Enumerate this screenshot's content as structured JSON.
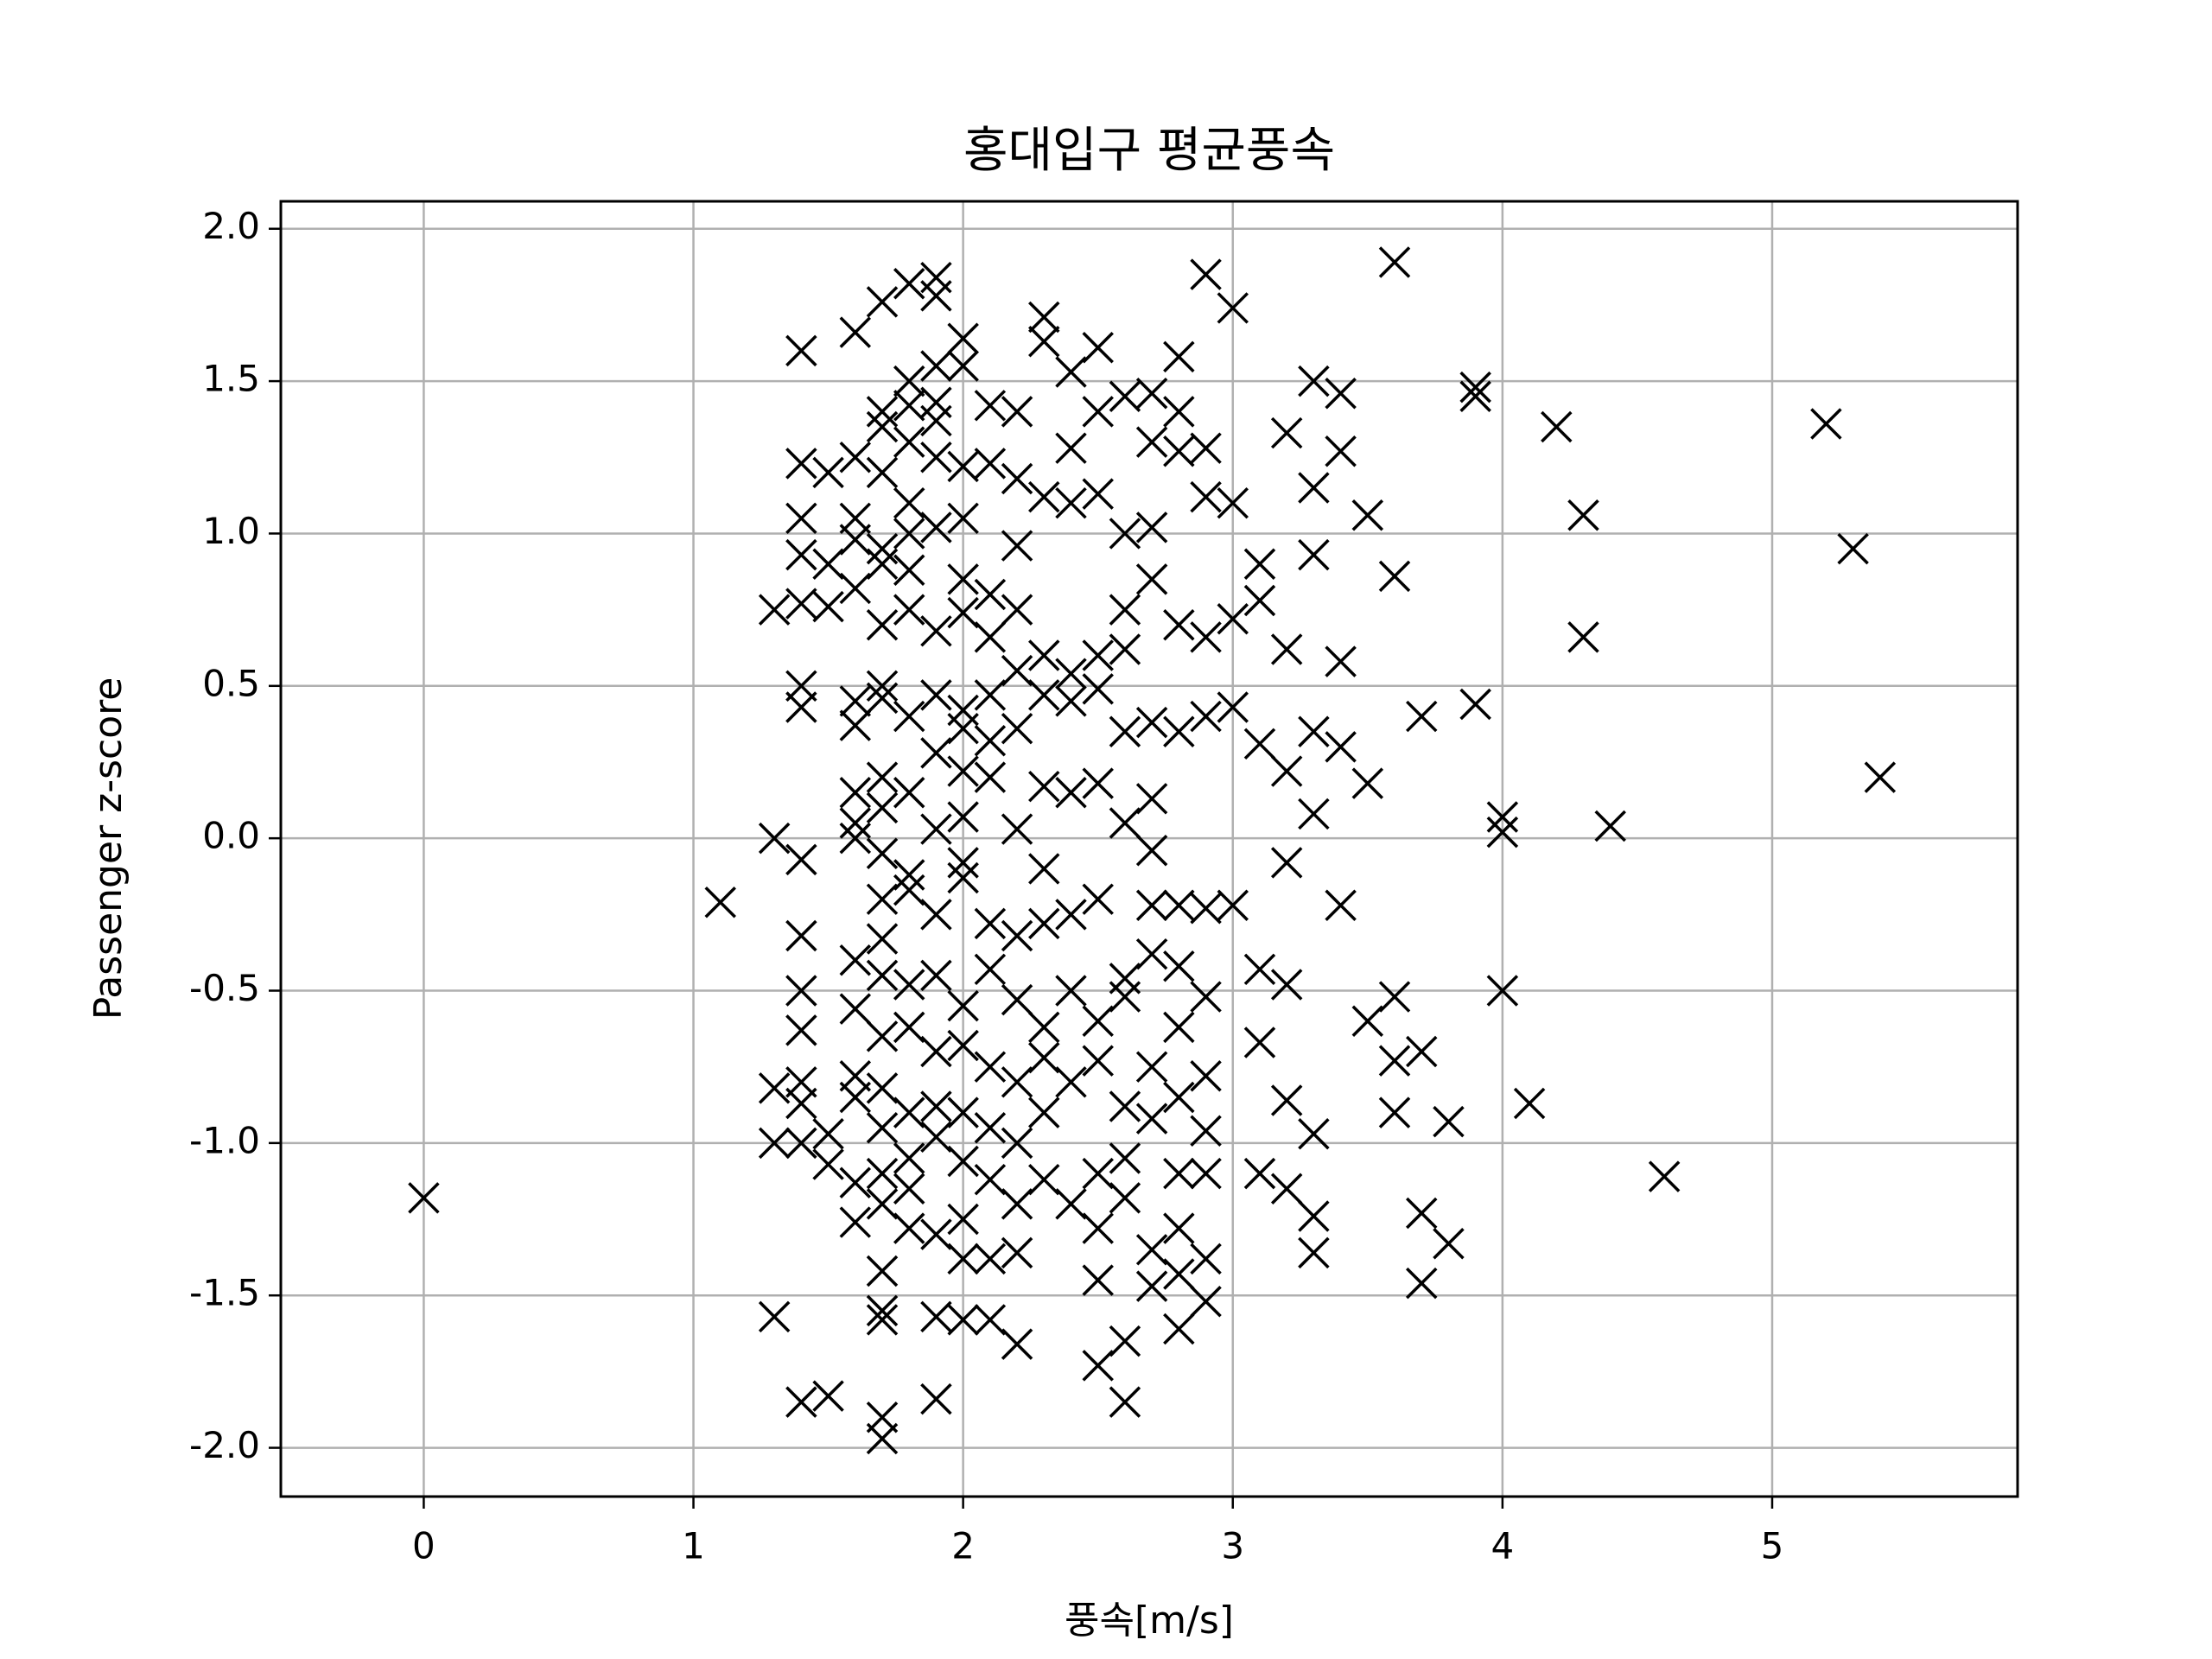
{
  "chart_data": {
    "type": "scatter",
    "title": "홍대입구 평균풍속",
    "xlabel": "풍속[m/s]",
    "ylabel": "Passenger z-score",
    "marker": "x",
    "color": "#000000",
    "grid": true,
    "xlim": [
      -0.53,
      5.91
    ],
    "ylim": [
      -2.16,
      2.09
    ],
    "xticks": [
      0,
      1,
      2,
      3,
      4,
      5
    ],
    "yticks": [
      {
        "value": -2.0,
        "label": "-2.0"
      },
      {
        "value": -1.5,
        "label": "-1.5"
      },
      {
        "value": -1.0,
        "label": "-1.0"
      },
      {
        "value": -0.5,
        "label": "-0.5"
      },
      {
        "value": 0.0,
        "label": "0.0"
      },
      {
        "value": 0.5,
        "label": "0.5"
      },
      {
        "value": 1.0,
        "label": "1.0"
      },
      {
        "value": 1.5,
        "label": "1.5"
      },
      {
        "value": 2.0,
        "label": "2.0"
      }
    ],
    "x": [
      0,
      1.1,
      1.3,
      1.3,
      1.3,
      1.3,
      1.3,
      1.4,
      1.4,
      1.4,
      1.4,
      1.4,
      1.4,
      1.4,
      1.4,
      1.4,
      1.4,
      1.4,
      1.4,
      1.4,
      1.4,
      1.4,
      1.5,
      1.5,
      1.5,
      1.5,
      1.5,
      1.5,
      1.6,
      1.6,
      1.6,
      1.6,
      1.6,
      1.6,
      1.6,
      1.6,
      1.6,
      1.6,
      1.6,
      1.6,
      1.6,
      1.6,
      1.6,
      1.6,
      1.7,
      1.7,
      1.7,
      1.7,
      1.7,
      1.7,
      1.7,
      1.7,
      1.7,
      1.7,
      1.7,
      1.7,
      1.7,
      1.7,
      1.7,
      1.7,
      1.7,
      1.7,
      1.7,
      1.7,
      1.7,
      1.7,
      1.7,
      1.7,
      1.7,
      1.8,
      1.8,
      1.8,
      1.8,
      1.8,
      1.8,
      1.8,
      1.8,
      1.8,
      1.8,
      1.8,
      1.8,
      1.8,
      1.8,
      1.8,
      1.8,
      1.8,
      1.8,
      1.9,
      1.9,
      1.9,
      1.9,
      1.9,
      1.9,
      1.9,
      1.9,
      1.9,
      1.9,
      1.9,
      1.9,
      1.9,
      1.9,
      1.9,
      1.9,
      1.9,
      1.9,
      1.9,
      2.0,
      2.0,
      2.0,
      2.0,
      2.0,
      2.0,
      2.0,
      2.0,
      2.0,
      2.0,
      2.0,
      2.0,
      2.0,
      2.0,
      2.0,
      2.0,
      2.0,
      2.0,
      2.0,
      2.1,
      2.1,
      2.1,
      2.1,
      2.1,
      2.1,
      2.1,
      2.1,
      2.1,
      2.1,
      2.1,
      2.1,
      2.1,
      2.1,
      2.2,
      2.2,
      2.2,
      2.2,
      2.2,
      2.2,
      2.2,
      2.2,
      2.2,
      2.2,
      2.2,
      2.2,
      2.2,
      2.2,
      2.3,
      2.3,
      2.3,
      2.3,
      2.3,
      2.3,
      2.3,
      2.3,
      2.3,
      2.3,
      2.3,
      2.3,
      2.4,
      2.4,
      2.4,
      2.4,
      2.4,
      2.4,
      2.4,
      2.4,
      2.4,
      2.4,
      2.5,
      2.5,
      2.5,
      2.5,
      2.5,
      2.5,
      2.5,
      2.5,
      2.5,
      2.5,
      2.5,
      2.5,
      2.5,
      2.6,
      2.6,
      2.6,
      2.6,
      2.6,
      2.6,
      2.6,
      2.6,
      2.6,
      2.6,
      2.6,
      2.6,
      2.6,
      2.7,
      2.7,
      2.7,
      2.7,
      2.7,
      2.7,
      2.7,
      2.7,
      2.7,
      2.7,
      2.7,
      2.7,
      2.7,
      2.8,
      2.8,
      2.8,
      2.8,
      2.8,
      2.8,
      2.8,
      2.8,
      2.8,
      2.8,
      2.8,
      2.8,
      2.8,
      2.9,
      2.9,
      2.9,
      2.9,
      2.9,
      2.9,
      2.9,
      2.9,
      2.9,
      2.9,
      2.9,
      2.9,
      3.0,
      3.0,
      3.0,
      3.0,
      3.0,
      3.1,
      3.1,
      3.1,
      3.1,
      3.1,
      3.1,
      3.2,
      3.2,
      3.2,
      3.2,
      3.2,
      3.2,
      3.2,
      3.3,
      3.3,
      3.3,
      3.3,
      3.3,
      3.3,
      3.3,
      3.3,
      3.4,
      3.4,
      3.4,
      3.4,
      3.4,
      3.5,
      3.5,
      3.5,
      3.6,
      3.6,
      3.6,
      3.6,
      3.6,
      3.7,
      3.7,
      3.7,
      3.7,
      3.8,
      3.8,
      3.9,
      3.9,
      3.9,
      4.0,
      4.0,
      4.0,
      4.1,
      4.2,
      4.3,
      4.3,
      4.4,
      4.6,
      5.2,
      5.3,
      5.4
    ],
    "y": [
      -1.18,
      -0.21,
      0.75,
      0.0,
      -0.82,
      -1.0,
      -1.57,
      1.6,
      1.23,
      1.05,
      0.93,
      0.77,
      0.5,
      0.43,
      -0.07,
      -0.32,
      -0.5,
      -0.63,
      -0.8,
      -0.87,
      -1.0,
      -1.85,
      1.2,
      0.9,
      0.76,
      -0.97,
      -1.07,
      -1.83,
      1.66,
      1.25,
      1.05,
      0.98,
      0.82,
      0.45,
      0.37,
      0.15,
      0.05,
      0.0,
      -0.4,
      -0.56,
      -0.78,
      -0.85,
      -1.13,
      -1.26,
      1.76,
      1.4,
      1.35,
      1.2,
      0.95,
      0.9,
      0.7,
      0.5,
      0.46,
      0.2,
      0.1,
      -0.05,
      -0.2,
      -0.33,
      -0.45,
      -0.65,
      -0.82,
      -0.95,
      -1.1,
      -1.2,
      -1.42,
      -1.55,
      -1.58,
      -1.9,
      -1.97,
      1.82,
      1.5,
      1.42,
      1.3,
      1.1,
      1.0,
      0.88,
      0.75,
      0.4,
      0.15,
      -0.12,
      -0.17,
      -0.48,
      -0.62,
      -0.9,
      -1.05,
      -1.15,
      -1.28,
      1.84,
      1.78,
      1.55,
      1.43,
      1.37,
      1.25,
      1.02,
      0.68,
      0.47,
      0.28,
      0.03,
      -0.25,
      -0.45,
      -0.7,
      -0.88,
      -0.98,
      -1.3,
      -1.57,
      -1.84,
      1.64,
      1.55,
      1.22,
      1.05,
      0.85,
      0.74,
      0.42,
      0.36,
      0.22,
      0.07,
      -0.08,
      -0.13,
      -0.55,
      -0.68,
      -0.9,
      -1.06,
      -1.25,
      -1.38,
      -1.58,
      1.42,
      1.23,
      0.8,
      0.66,
      0.47,
      0.32,
      0.2,
      -0.28,
      -0.43,
      -0.75,
      -0.95,
      -1.12,
      -1.38,
      -1.58,
      1.4,
      1.18,
      0.96,
      0.75,
      0.55,
      0.36,
      0.03,
      -0.32,
      -0.53,
      -0.8,
      -1.0,
      -1.2,
      -1.36,
      -1.66,
      1.71,
      1.63,
      1.12,
      0.6,
      0.47,
      0.17,
      -0.1,
      -0.28,
      -0.62,
      -0.72,
      -0.9,
      -1.12,
      1.53,
      1.28,
      1.1,
      0.54,
      0.45,
      0.15,
      -0.25,
      -0.5,
      -0.8,
      -1.2,
      1.61,
      1.4,
      1.13,
      0.6,
      0.49,
      0.18,
      -0.2,
      -0.6,
      -0.73,
      -1.1,
      -1.28,
      -1.45,
      -1.73,
      1.45,
      1.0,
      0.75,
      0.62,
      0.35,
      0.05,
      -0.46,
      -0.52,
      -0.88,
      -1.05,
      -1.18,
      -1.65,
      -1.85,
      1.46,
      1.3,
      1.02,
      0.85,
      0.38,
      0.13,
      -0.04,
      -0.22,
      -0.38,
      -0.75,
      -0.92,
      -1.35,
      -1.47,
      1.58,
      1.4,
      1.27,
      0.7,
      0.35,
      -0.22,
      -0.42,
      -0.62,
      -0.85,
      -1.1,
      -1.28,
      -1.43,
      -1.61,
      1.85,
      1.28,
      1.12,
      0.66,
      0.4,
      -0.23,
      -0.52,
      -0.78,
      -0.96,
      -1.1,
      -1.38,
      -1.52,
      1.74,
      1.1,
      0.72,
      0.43,
      -0.22,
      0.9,
      0.78,
      0.31,
      -0.43,
      -0.67,
      -1.1,
      1.33,
      0.62,
      0.22,
      -0.08,
      -0.48,
      -0.86,
      -1.15,
      1.5,
      1.15,
      0.93,
      0.35,
      0.08,
      -0.97,
      -1.24,
      -1.36,
      1.46,
      1.27,
      0.58,
      0.3,
      -0.22,
      1.06,
      0.18,
      -0.6,
      1.89,
      0.86,
      -0.52,
      -0.73,
      -0.9,
      0.4,
      -0.7,
      -1.23,
      -1.46,
      -0.93,
      -1.33,
      1.48,
      1.45,
      0.44,
      0.07,
      0.02,
      -0.5,
      -0.87,
      1.35,
      1.06,
      0.66,
      0.04,
      -1.11,
      1.36,
      0.95,
      0.2
    ]
  }
}
